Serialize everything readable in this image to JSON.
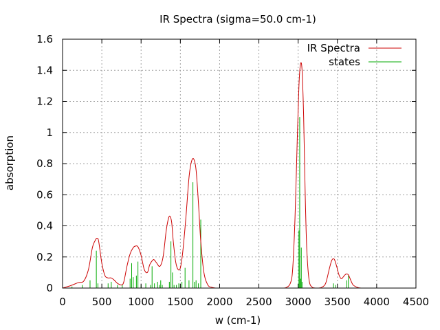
{
  "chart_data": {
    "type": "line",
    "title": "IR Spectra (sigma=50.0 cm-1)",
    "xlabel": "w (cm-1)",
    "ylabel": "absorption",
    "xlim": [
      0,
      4500
    ],
    "ylim": [
      0,
      1.6
    ],
    "x_ticks": [
      "0",
      "500",
      "1000",
      "1500",
      "2000",
      "2500",
      "3000",
      "3500",
      "4000",
      "4500"
    ],
    "y_ticks": [
      "0",
      "0.2",
      "0.4",
      "0.6",
      "0.8",
      "1",
      "1.2",
      "1.4",
      "1.6"
    ],
    "grid": true,
    "legend_position": "top-right",
    "series": [
      {
        "name": "IR Spectra",
        "kind": "line",
        "color": "#cc0000",
        "x": [
          0,
          100,
          200,
          270,
          330,
          380,
          420,
          440,
          460,
          500,
          540,
          580,
          620,
          660,
          700,
          750,
          780,
          820,
          860,
          900,
          930,
          960,
          1000,
          1040,
          1080,
          1110,
          1150,
          1170,
          1200,
          1240,
          1280,
          1320,
          1350,
          1370,
          1390,
          1410,
          1440,
          1470,
          1500,
          1530,
          1570,
          1610,
          1640,
          1670,
          1700,
          1730,
          1760,
          1800,
          1850,
          1900,
          1950,
          2000,
          2200,
          2400,
          2600,
          2800,
          2850,
          2900,
          2930,
          2960,
          2990,
          3010,
          3030,
          3050,
          3070,
          3090,
          3110,
          3140,
          3180,
          3220,
          3260,
          3300,
          3350,
          3400,
          3430,
          3460,
          3490,
          3520,
          3550,
          3580,
          3610,
          3640,
          3670,
          3700,
          3750,
          3800,
          3900,
          4000,
          4500
        ],
        "y": [
          0,
          0.015,
          0.035,
          0.045,
          0.12,
          0.26,
          0.31,
          0.32,
          0.3,
          0.16,
          0.08,
          0.065,
          0.065,
          0.05,
          0.03,
          0.02,
          0.04,
          0.14,
          0.22,
          0.26,
          0.27,
          0.265,
          0.21,
          0.12,
          0.1,
          0.15,
          0.18,
          0.18,
          0.16,
          0.14,
          0.2,
          0.37,
          0.45,
          0.46,
          0.42,
          0.3,
          0.17,
          0.12,
          0.13,
          0.23,
          0.45,
          0.71,
          0.81,
          0.83,
          0.76,
          0.55,
          0.3,
          0.1,
          0.02,
          0.005,
          0,
          0,
          0,
          0,
          0,
          0,
          0.004,
          0.03,
          0.12,
          0.45,
          0.98,
          1.3,
          1.44,
          1.4,
          1.1,
          0.6,
          0.25,
          0.05,
          0.005,
          0,
          0,
          0.005,
          0.03,
          0.13,
          0.18,
          0.185,
          0.14,
          0.085,
          0.06,
          0.075,
          0.09,
          0.085,
          0.05,
          0.02,
          0.005,
          0,
          0,
          0,
          0
        ]
      },
      {
        "name": "states",
        "kind": "impulses",
        "color": "#00aa00",
        "x": [
          120,
          250,
          350,
          430,
          450,
          580,
          620,
          700,
          760,
          860,
          880,
          900,
          940,
          960,
          1000,
          1060,
          1120,
          1140,
          1170,
          1210,
          1230,
          1250,
          1270,
          1360,
          1380,
          1400,
          1420,
          1450,
          1480,
          1520,
          1560,
          1610,
          1660,
          1680,
          1700,
          1730,
          1760,
          3010,
          3020,
          3030,
          3040,
          3050,
          3450,
          3480,
          3620,
          3640
        ],
        "y": [
          0.01,
          0.02,
          0.05,
          0.24,
          0.03,
          0.03,
          0.04,
          0.02,
          0.02,
          0.06,
          0.16,
          0.07,
          0.08,
          0.17,
          0.02,
          0.03,
          0.02,
          0.14,
          0.03,
          0.04,
          0.02,
          0.05,
          0.02,
          0.04,
          0.3,
          0.1,
          0.02,
          0.02,
          0.03,
          0.04,
          0.13,
          0.05,
          0.68,
          0.04,
          0.05,
          0.03,
          0.44,
          0.37,
          1.1,
          0.06,
          0.26,
          0.04,
          0.03,
          0.02,
          0.05,
          0.08
        ]
      }
    ]
  }
}
